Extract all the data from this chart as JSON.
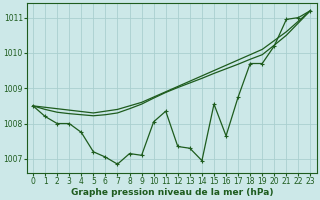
{
  "xlabel": "Graphe pression niveau de la mer (hPa)",
  "bg_color": "#cce8e8",
  "grid_color": "#aacfcf",
  "line_color": "#1e5c1e",
  "x_values": [
    0,
    1,
    2,
    3,
    4,
    5,
    6,
    7,
    8,
    9,
    10,
    11,
    12,
    13,
    14,
    15,
    16,
    17,
    18,
    19,
    20,
    21,
    22,
    23
  ],
  "line1": [
    1008.5,
    1008.2,
    1008.0,
    1008.0,
    1007.75,
    1007.2,
    1007.05,
    1006.85,
    1007.15,
    1007.1,
    1008.05,
    1008.35,
    1007.35,
    1007.3,
    1006.95,
    1008.55,
    1007.65,
    1008.75,
    1009.7,
    1009.7,
    1010.2,
    1010.95,
    1011.0,
    1011.2
  ],
  "line2": [
    1008.5,
    1008.46,
    1008.42,
    1008.38,
    1008.34,
    1008.3,
    1008.35,
    1008.4,
    1008.5,
    1008.6,
    1008.75,
    1008.9,
    1009.05,
    1009.2,
    1009.35,
    1009.5,
    1009.65,
    1009.8,
    1009.95,
    1010.1,
    1010.35,
    1010.6,
    1010.9,
    1011.2
  ],
  "line3": [
    1008.5,
    1008.4,
    1008.32,
    1008.28,
    1008.25,
    1008.22,
    1008.25,
    1008.3,
    1008.42,
    1008.55,
    1008.72,
    1008.88,
    1009.02,
    1009.15,
    1009.28,
    1009.42,
    1009.55,
    1009.68,
    1009.82,
    1009.95,
    1010.22,
    1010.5,
    1010.85,
    1011.2
  ],
  "ylim": [
    1006.6,
    1011.4
  ],
  "yticks": [
    1007,
    1008,
    1009,
    1010,
    1011
  ],
  "xticks": [
    0,
    1,
    2,
    3,
    4,
    5,
    6,
    7,
    8,
    9,
    10,
    11,
    12,
    13,
    14,
    15,
    16,
    17,
    18,
    19,
    20,
    21,
    22,
    23
  ],
  "tick_fontsize": 5.5,
  "xlabel_fontsize": 6.5,
  "marker": "+",
  "markersize": 3.5,
  "linewidth": 0.9
}
